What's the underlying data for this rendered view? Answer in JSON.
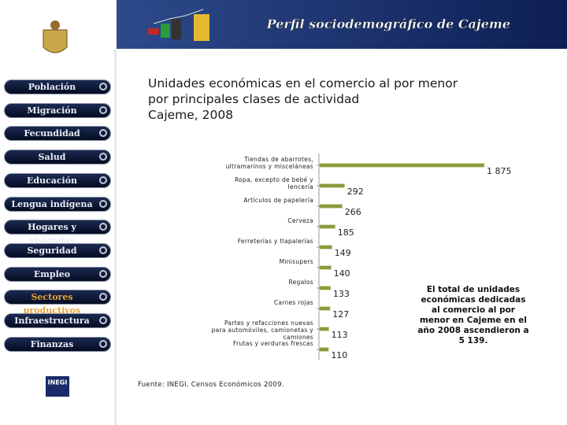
{
  "header": {
    "title": "Perfil sociodemográfico de Cajeme"
  },
  "menu": [
    "Población",
    "Migración",
    "Fecundidad",
    "Salud",
    "Educación",
    "Lengua indígena",
    "Hogares y viviendas",
    "Seguridad",
    "Empleo",
    "Sectores productivos",
    "Infraestructura",
    "Finanzas"
  ],
  "logo": "INEGI",
  "chart_data": {
    "type": "hbar",
    "title": [
      "Unidades económicas en el comercio al por menor",
      "por principales clases de actividad",
      "Cajeme, 2008"
    ],
    "categories": [
      "Tiendas de abarrotes, ultramarinos y misceláneas",
      "Ropa, excepto de bebé y lencería",
      "Artículos de papelería",
      "Cerveza",
      "Ferreterías y tlapalerías",
      "Minisupers",
      "Regalos",
      "Carnes rojas",
      "Partes y refacciones nuevas para automóviles, camionetas y camiones",
      "Frutas y verduras frescas"
    ],
    "values": [
      1875,
      292,
      266,
      185,
      149,
      140,
      133,
      127,
      113,
      110
    ],
    "value_labels": [
      "1 875",
      "292",
      "266",
      "185",
      "149",
      "140",
      "133",
      "127",
      "113",
      "110"
    ],
    "color": "#8c9a3c",
    "xlim": [
      0,
      2000
    ]
  },
  "source": "Fuente: INEGI. Censos Económicos 2009.",
  "note": "El total de unidades económicas dedicadas al comercio al por menor en Cajeme en el año 2008 ascendieron a 5 139."
}
